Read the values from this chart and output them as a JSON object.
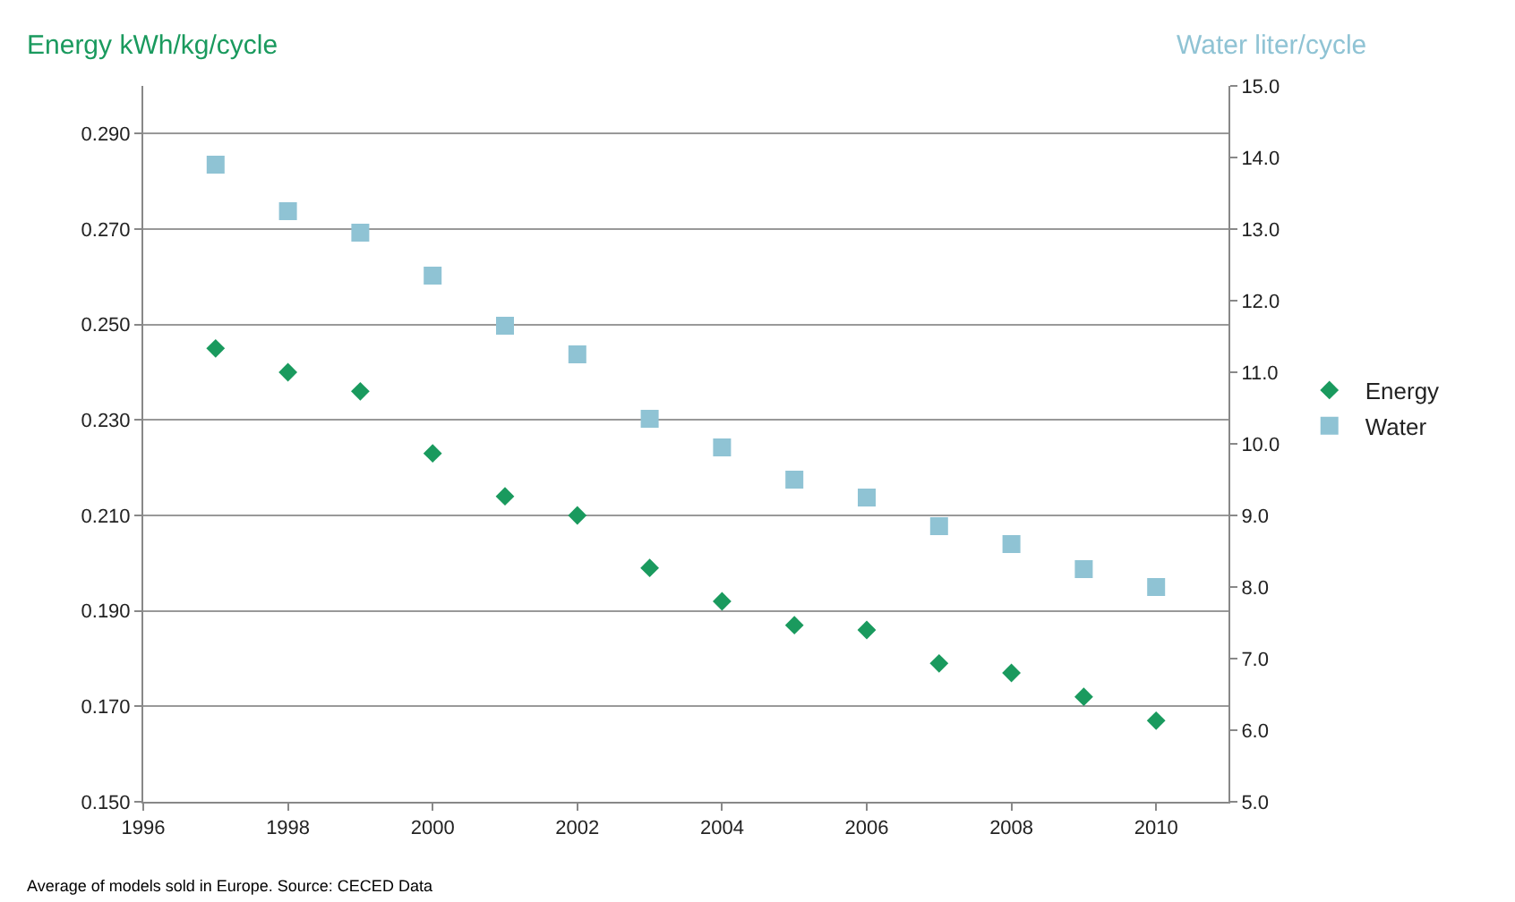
{
  "chart_data": {
    "type": "scatter",
    "ylabel": "Energy kWh/kg/cycle",
    "y2label": "Water liter/cycle",
    "x": [
      1997,
      1998,
      1999,
      2000,
      2001,
      2002,
      2003,
      2004,
      2005,
      2006,
      2007,
      2008,
      2009,
      2010
    ],
    "series": [
      {
        "name": "Energy",
        "color": "#1a9a5e",
        "marker": "diamond",
        "values": [
          0.245,
          0.24,
          0.236,
          0.223,
          0.214,
          0.21,
          0.199,
          0.192,
          0.187,
          0.186,
          0.179,
          0.177,
          0.172,
          0.167
        ]
      },
      {
        "name": "Water",
        "color": "#8fc3d4",
        "marker": "square",
        "axis": "y2",
        "values": [
          13.9,
          13.25,
          12.95,
          12.35,
          11.65,
          11.25,
          10.35,
          9.95,
          9.5,
          9.25,
          8.85,
          8.6,
          8.25,
          8.0
        ]
      }
    ],
    "xlim": [
      1996,
      2011
    ],
    "xticks": [
      1996,
      1998,
      2000,
      2002,
      2004,
      2006,
      2008,
      2010
    ],
    "ylim": [
      0.15,
      0.3
    ],
    "yticks": [
      {
        "value": 0.15,
        "label": "0.150"
      },
      {
        "value": 0.17,
        "label": "0.170"
      },
      {
        "value": 0.19,
        "label": "0.190"
      },
      {
        "value": 0.21,
        "label": "0.210"
      },
      {
        "value": 0.23,
        "label": "0.230"
      },
      {
        "value": 0.25,
        "label": "0.250"
      },
      {
        "value": 0.27,
        "label": "0.270"
      },
      {
        "value": 0.29,
        "label": "0.290"
      }
    ],
    "y2lim": [
      5,
      15
    ],
    "y2ticks": [
      {
        "value": 5,
        "label": "5.0"
      },
      {
        "value": 6,
        "label": "6.0"
      },
      {
        "value": 7,
        "label": "7.0"
      },
      {
        "value": 8,
        "label": "8.0"
      },
      {
        "value": 9,
        "label": "9.0"
      },
      {
        "value": 10,
        "label": "10.0"
      },
      {
        "value": 11,
        "label": "11.0"
      },
      {
        "value": 12,
        "label": "12.0"
      },
      {
        "value": 13,
        "label": "13.0"
      },
      {
        "value": 14,
        "label": "14.0"
      },
      {
        "value": 15,
        "label": "15.0"
      }
    ],
    "grid": "y",
    "legend": "right",
    "annotations": [
      "Average of models sold in Europe. Source: CECED Data"
    ]
  }
}
